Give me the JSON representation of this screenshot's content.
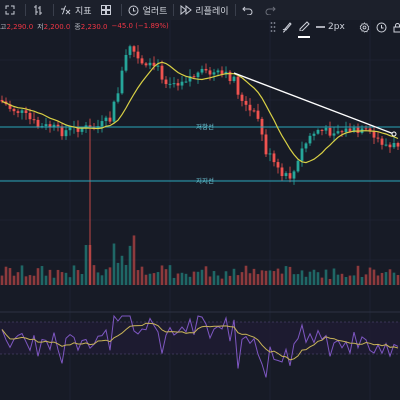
{
  "toolbar": {
    "items": [
      {
        "icon": "fullscreen-icon",
        "label": ""
      },
      {
        "icon": "bar-style-icon",
        "label": ""
      },
      {
        "icon": "indicator-fx-icon",
        "label": "지표"
      },
      {
        "icon": "layout-grid-icon",
        "label": ""
      },
      {
        "icon": "alert-clock-icon",
        "label": "얼러트"
      },
      {
        "icon": "replay-icon",
        "label": "리플레이"
      },
      {
        "icon": "undo-icon",
        "label": ""
      },
      {
        "icon": "redo-icon",
        "label": ""
      }
    ]
  },
  "drawing_toolbar": {
    "stroke_width_label": "2px",
    "line_color": "#ffffff"
  },
  "ohlc": {
    "high_label": "고",
    "high_value": "2,290.0",
    "low_label": "저",
    "low_value": "2,200.0",
    "close_label": "종",
    "close_value": "2,230.0",
    "change_value": "−45.0 (−1.89%)"
  },
  "levels": {
    "resistance_label": "저항선",
    "support_label": "지지선"
  },
  "colors": {
    "background": "#171b26",
    "up": "#26a69a",
    "down": "#ef5350",
    "ma": "#d8d045",
    "level_line": "#2aa6b8",
    "rsi": "#7e57c2",
    "rsi_ma": "#c9b458"
  },
  "chart_data": {
    "type": "candlestick",
    "timeframe_labels_visible": false,
    "indicators": [
      "moving-average",
      "volume",
      "rsi"
    ],
    "horizontal_levels": [
      "저항선",
      "지지선"
    ],
    "trendline": "descending"
  }
}
